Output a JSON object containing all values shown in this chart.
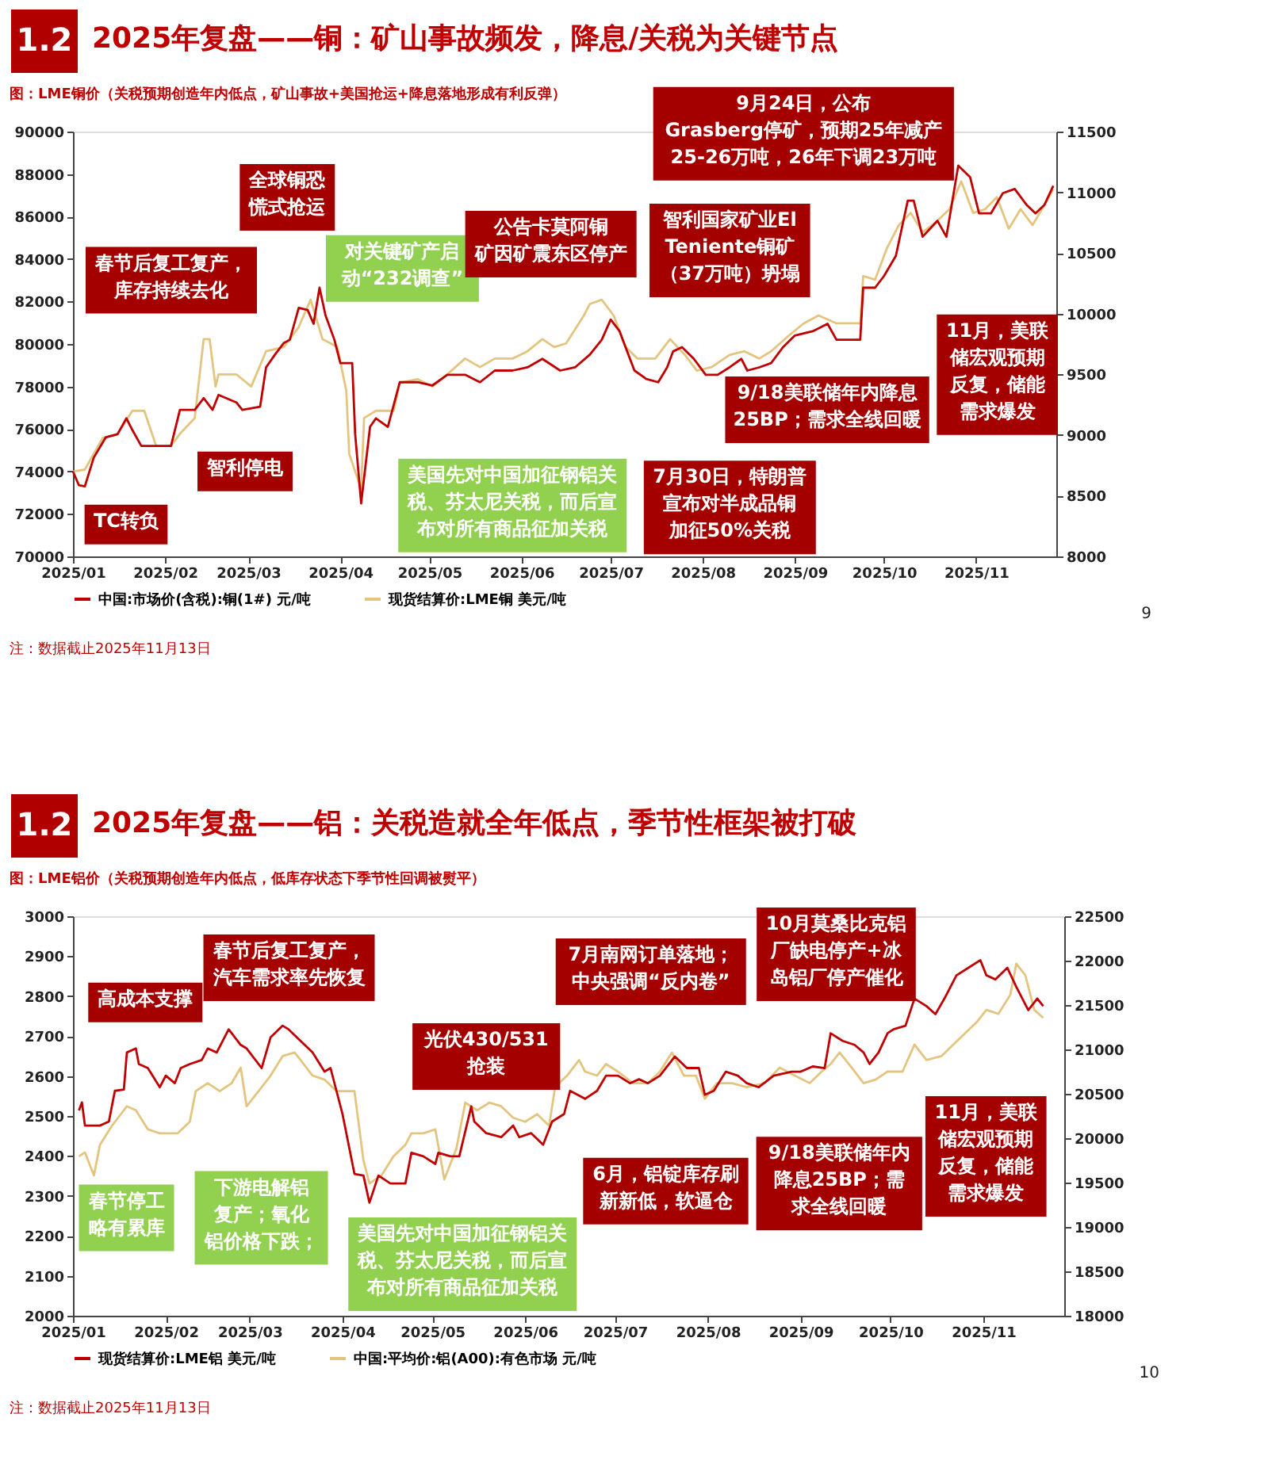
{
  "chart_data": [
    {
      "type": "line",
      "title": "2025年复盘——铜：矿山事故频发，降息/关税为关键节点",
      "subtitle": "图：LME铜价（关税预期创造年内低点，矿山事故+美国抢运+降息落地形成有利反弹）",
      "legend": "bottom",
      "xlim": [
        "2025-01-01",
        "2025-11-28"
      ],
      "xticks": [
        {
          "value": "2025-01-01",
          "label": "2025/01"
        },
        {
          "value": "2025-02-01",
          "label": "2025/02"
        },
        {
          "value": "2025-03-01",
          "label": "2025/03"
        },
        {
          "value": "2025-04-01",
          "label": "2025/04"
        },
        {
          "value": "2025-05-01",
          "label": "2025/05"
        },
        {
          "value": "2025-06-01",
          "label": "2025/06"
        },
        {
          "value": "2025-07-01",
          "label": "2025/07"
        },
        {
          "value": "2025-08-01",
          "label": "2025/08"
        },
        {
          "value": "2025-09-01",
          "label": "2025/09"
        },
        {
          "value": "2025-10-01",
          "label": "2025/10"
        },
        {
          "value": "2025-11-01",
          "label": "2025/11"
        }
      ],
      "ylim": [
        70000,
        90000
      ],
      "yticks": [
        70000,
        72000,
        74000,
        76000,
        78000,
        80000,
        82000,
        84000,
        86000,
        88000,
        90000
      ],
      "y2lim": [
        8000,
        11500
      ],
      "y2ticks": [
        8000,
        8500,
        9000,
        9500,
        10000,
        10500,
        11000,
        11500
      ],
      "series": [
        {
          "name": "中国:市场价(含税):铜(1#) 元/吨",
          "color": "#c00000",
          "x": [
            "2025-01-01",
            "2025-01-03",
            "2025-01-05",
            "2025-01-08",
            "2025-01-12",
            "2025-01-16",
            "2025-01-19",
            "2025-01-21",
            "2025-01-24",
            "2025-01-29",
            "2025-02-03",
            "2025-02-06",
            "2025-02-11",
            "2025-02-14",
            "2025-02-17",
            "2025-02-19",
            "2025-02-25",
            "2025-02-27",
            "2025-03-05",
            "2025-03-07",
            "2025-03-10",
            "2025-03-13",
            "2025-03-15",
            "2025-03-18",
            "2025-03-21",
            "2025-03-23",
            "2025-03-25",
            "2025-03-27",
            "2025-03-30",
            "2025-04-01",
            "2025-04-05",
            "2025-04-06",
            "2025-04-08",
            "2025-04-11",
            "2025-04-13",
            "2025-04-17",
            "2025-04-21",
            "2025-04-27",
            "2025-05-02",
            "2025-05-07",
            "2025-05-13",
            "2025-05-18",
            "2025-05-23",
            "2025-05-29",
            "2025-06-03",
            "2025-06-08",
            "2025-06-14",
            "2025-06-19",
            "2025-06-24",
            "2025-06-28",
            "2025-07-01",
            "2025-07-04",
            "2025-07-06",
            "2025-07-09",
            "2025-07-13",
            "2025-07-17",
            "2025-07-20",
            "2025-07-22",
            "2025-07-25",
            "2025-07-29",
            "2025-08-02",
            "2025-08-06",
            "2025-08-10",
            "2025-08-14",
            "2025-08-16",
            "2025-08-20",
            "2025-08-24",
            "2025-08-28",
            "2025-09-01",
            "2025-09-07",
            "2025-09-12",
            "2025-09-15",
            "2025-09-19",
            "2025-09-23",
            "2025-09-24",
            "2025-09-28",
            "2025-10-01",
            "2025-10-05",
            "2025-10-09",
            "2025-10-11",
            "2025-10-14",
            "2025-10-19",
            "2025-10-22",
            "2025-10-26",
            "2025-10-30",
            "2025-11-02",
            "2025-11-06",
            "2025-11-10",
            "2025-11-14",
            "2025-11-18",
            "2025-11-21",
            "2025-11-24",
            "2025-11-27"
          ],
          "values": [
            74000,
            73350,
            73300,
            74650,
            75600,
            75750,
            76500,
            75950,
            75200,
            75200,
            75200,
            76900,
            76900,
            77450,
            76900,
            77600,
            77250,
            76900,
            77050,
            78900,
            79500,
            80050,
            80200,
            81700,
            81600,
            80950,
            82650,
            81350,
            80200,
            79100,
            79100,
            75750,
            72500,
            76100,
            76500,
            76100,
            78200,
            78200,
            78050,
            78550,
            78550,
            78200,
            78750,
            78750,
            78900,
            79300,
            78750,
            78900,
            79500,
            80200,
            81150,
            80600,
            79850,
            78750,
            78350,
            78200,
            78900,
            79650,
            79850,
            79300,
            78550,
            78550,
            78900,
            79300,
            78750,
            78900,
            79100,
            79850,
            80400,
            80600,
            80950,
            80200,
            80200,
            80200,
            82650,
            82650,
            83200,
            84150,
            86750,
            86750,
            85050,
            85800,
            85050,
            88400,
            87850,
            86150,
            86150,
            87100,
            87300,
            86550,
            86150,
            86550,
            87450
          ]
        },
        {
          "name": "现货结算价:LME铜 美元/吨",
          "color": "#e3c57f",
          "axis": "y2",
          "x": [
            "2025-01-01",
            "2025-01-05",
            "2025-01-11",
            "2025-01-16",
            "2025-01-21",
            "2025-01-25",
            "2025-01-29",
            "2025-02-03",
            "2025-02-06",
            "2025-02-11",
            "2025-02-14",
            "2025-02-16",
            "2025-02-18",
            "2025-02-19",
            "2025-02-25",
            "2025-03-02",
            "2025-03-07",
            "2025-03-13",
            "2025-03-18",
            "2025-03-22",
            "2025-03-26",
            "2025-03-31",
            "2025-04-03",
            "2025-04-04",
            "2025-04-08",
            "2025-04-09",
            "2025-04-13",
            "2025-04-19",
            "2025-04-21",
            "2025-04-27",
            "2025-05-02",
            "2025-05-07",
            "2025-05-13",
            "2025-05-18",
            "2025-05-23",
            "2025-05-29",
            "2025-06-03",
            "2025-06-08",
            "2025-06-12",
            "2025-06-16",
            "2025-06-22",
            "2025-06-24",
            "2025-06-28",
            "2025-07-02",
            "2025-07-06",
            "2025-07-10",
            "2025-07-16",
            "2025-07-21",
            "2025-07-26",
            "2025-07-30",
            "2025-08-04",
            "2025-08-10",
            "2025-08-15",
            "2025-08-20",
            "2025-08-24",
            "2025-08-30",
            "2025-09-04",
            "2025-09-09",
            "2025-09-15",
            "2025-09-20",
            "2025-09-23",
            "2025-09-24",
            "2025-09-28",
            "2025-10-02",
            "2025-10-06",
            "2025-10-10",
            "2025-10-14",
            "2025-10-19",
            "2025-10-23",
            "2025-10-27",
            "2025-10-31",
            "2025-11-04",
            "2025-11-08",
            "2025-11-12",
            "2025-11-16",
            "2025-11-20",
            "2025-11-24",
            "2025-11-27"
          ],
          "values": [
            8700,
            8715,
            8975,
            9010,
            9200,
            9200,
            8910,
            8910,
            9010,
            9140,
            9790,
            9790,
            9400,
            9500,
            9500,
            9400,
            9690,
            9725,
            9890,
            10115,
            9790,
            9725,
            9365,
            8845,
            8555,
            9140,
            9200,
            9200,
            9430,
            9460,
            9400,
            9500,
            9630,
            9560,
            9630,
            9630,
            9690,
            9790,
            9725,
            9755,
            9985,
            10080,
            10115,
            9985,
            9725,
            9630,
            9630,
            9790,
            9660,
            9530,
            9560,
            9660,
            9690,
            9630,
            9690,
            9820,
            9920,
            9985,
            9920,
            9920,
            9920,
            10310,
            10280,
            10540,
            10730,
            10830,
            10670,
            10765,
            10860,
            11090,
            10830,
            10860,
            10960,
            10700,
            10860,
            10730,
            10895,
            11025
          ]
        }
      ],
      "annotations": [
        "1.2",
        "9",
        "注：数据截止2025年11月13日",
        "春节后复工复产，库存持续去化",
        "全球铜恐慌式抢运",
        "TC转负",
        "智利停电",
        "对关键矿产启动“232调查”",
        "公告卡莫阿铜矿因矿震东区停产",
        "9月24日，公布Grasberg停矿，预期25年减产25-26万吨，26年下调23万吨",
        "智利国家矿业El Teniente铜矿（37万吨）坍塌",
        "9/18美联储年内降息25BP；需求全线回暖",
        "7月30日，特朗普宣布对半成品铜加征50%关税",
        "美国先对中国加征钢铝关税、芬太尼关税，而后宣布对所有商品征加关税",
        "11月，美联储宏观预期反复，储能需求爆发"
      ]
    },
    {
      "type": "line",
      "title": "2025年复盘——铝：关税造就全年低点，季节性框架被打破",
      "subtitle": "图：LME铝价（关税预期创造年内低点，低库存状态下季节性回调被熨平）",
      "legend": "bottom",
      "xlim": [
        "2025-01-01",
        "2025-11-28"
      ],
      "xticks": [
        {
          "value": "2025-01-01",
          "label": "2025/01"
        },
        {
          "value": "2025-02-01",
          "label": "2025/02"
        },
        {
          "value": "2025-03-01",
          "label": "2025/03"
        },
        {
          "value": "2025-04-01",
          "label": "2025/04"
        },
        {
          "value": "2025-05-01",
          "label": "2025/05"
        },
        {
          "value": "2025-06-01",
          "label": "2025/06"
        },
        {
          "value": "2025-07-01",
          "label": "2025/07"
        },
        {
          "value": "2025-08-01",
          "label": "2025/08"
        },
        {
          "value": "2025-09-01",
          "label": "2025/09"
        },
        {
          "value": "2025-10-01",
          "label": "2025/10"
        },
        {
          "value": "2025-11-01",
          "label": "2025/11"
        }
      ],
      "ylim": [
        2000,
        3000
      ],
      "yticks": [
        2000,
        2100,
        2200,
        2300,
        2400,
        2500,
        2600,
        2700,
        2800,
        2900,
        3000
      ],
      "y2lim": [
        18000,
        22500
      ],
      "y2ticks": [
        18000,
        18500,
        19000,
        19500,
        20000,
        20500,
        21000,
        21500,
        22000,
        22500
      ],
      "series": [
        {
          "name": "现货结算价:LME铝 美元/吨",
          "color": "#c00000",
          "x": [
            "2025-01-03",
            "2025-01-04",
            "2025-01-05",
            "2025-01-10",
            "2025-01-13",
            "2025-01-15",
            "2025-01-18",
            "2025-01-19",
            "2025-01-22",
            "2025-01-23",
            "2025-01-26",
            "2025-01-30",
            "2025-02-01",
            "2025-02-04",
            "2025-02-06",
            "2025-02-09",
            "2025-02-13",
            "2025-02-15",
            "2025-02-18",
            "2025-02-22",
            "2025-02-26",
            "2025-02-28",
            "2025-03-05",
            "2025-03-08",
            "2025-03-12",
            "2025-03-14",
            "2025-03-18",
            "2025-03-22",
            "2025-03-26",
            "2025-03-28",
            "2025-04-01",
            "2025-04-05",
            "2025-04-08",
            "2025-04-10",
            "2025-04-13",
            "2025-04-17",
            "2025-04-22",
            "2025-04-24",
            "2025-04-28",
            "2025-05-02",
            "2025-05-03",
            "2025-05-07",
            "2025-05-10",
            "2025-05-14",
            "2025-05-15",
            "2025-05-19",
            "2025-05-24",
            "2025-05-28",
            "2025-05-30",
            "2025-06-03",
            "2025-06-07",
            "2025-06-10",
            "2025-06-14",
            "2025-06-16",
            "2025-06-21",
            "2025-06-25",
            "2025-06-28",
            "2025-07-02",
            "2025-07-06",
            "2025-07-09",
            "2025-07-12",
            "2025-07-16",
            "2025-07-21",
            "2025-07-25",
            "2025-07-29",
            "2025-07-31",
            "2025-08-03",
            "2025-08-07",
            "2025-08-11",
            "2025-08-14",
            "2025-08-18",
            "2025-08-23",
            "2025-08-29",
            "2025-09-01",
            "2025-09-05",
            "2025-09-09",
            "2025-09-11",
            "2025-09-15",
            "2025-09-19",
            "2025-09-22",
            "2025-09-24",
            "2025-09-27",
            "2025-09-30",
            "2025-10-02",
            "2025-10-06",
            "2025-10-09",
            "2025-10-13",
            "2025-10-16",
            "2025-10-19",
            "2025-10-23",
            "2025-10-27",
            "2025-10-31",
            "2025-11-02",
            "2025-11-05",
            "2025-11-09",
            "2025-11-12",
            "2025-11-16",
            "2025-11-19",
            "2025-11-21"
          ],
          "values": [
            2514,
            2534,
            2476,
            2476,
            2486,
            2563,
            2566,
            2659,
            2669,
            2630,
            2620,
            2572,
            2601,
            2582,
            2620,
            2630,
            2640,
            2669,
            2659,
            2717,
            2678,
            2669,
            2620,
            2697,
            2726,
            2717,
            2688,
            2659,
            2611,
            2620,
            2505,
            2355,
            2351,
            2283,
            2351,
            2331,
            2331,
            2408,
            2399,
            2380,
            2408,
            2399,
            2399,
            2524,
            2486,
            2457,
            2447,
            2476,
            2447,
            2457,
            2428,
            2486,
            2505,
            2563,
            2543,
            2563,
            2601,
            2601,
            2582,
            2592,
            2582,
            2601,
            2649,
            2620,
            2620,
            2553,
            2563,
            2611,
            2601,
            2582,
            2572,
            2601,
            2611,
            2611,
            2624,
            2620,
            2707,
            2688,
            2678,
            2659,
            2630,
            2659,
            2707,
            2717,
            2726,
            2794,
            2775,
            2755,
            2794,
            2852,
            2871,
            2890,
            2852,
            2842,
            2871,
            2823,
            2765,
            2794,
            2775
          ]
        },
        {
          "name": "中国:平均价:铝(A00):有色市场 元/吨",
          "color": "#e3c57f",
          "axis": "y2",
          "x": [
            "2025-01-03",
            "2025-01-05",
            "2025-01-08",
            "2025-01-10",
            "2025-01-14",
            "2025-01-17",
            "2025-01-19",
            "2025-01-22",
            "2025-01-26",
            "2025-01-30",
            "2025-02-05",
            "2025-02-09",
            "2025-02-11",
            "2025-02-15",
            "2025-02-19",
            "2025-02-23",
            "2025-02-26",
            "2025-02-28",
            "2025-03-04",
            "2025-03-08",
            "2025-03-12",
            "2025-03-16",
            "2025-03-18",
            "2025-03-22",
            "2025-03-26",
            "2025-03-30",
            "2025-04-05",
            "2025-04-08",
            "2025-04-10",
            "2025-04-14",
            "2025-04-18",
            "2025-04-22",
            "2025-04-24",
            "2025-04-28",
            "2025-05-02",
            "2025-05-05",
            "2025-05-09",
            "2025-05-12",
            "2025-05-16",
            "2025-05-20",
            "2025-05-24",
            "2025-05-28",
            "2025-06-01",
            "2025-06-05",
            "2025-06-09",
            "2025-06-11",
            "2025-06-15",
            "2025-06-19",
            "2025-06-21",
            "2025-06-25",
            "2025-06-28",
            "2025-07-02",
            "2025-07-07",
            "2025-07-12",
            "2025-07-16",
            "2025-07-20",
            "2025-07-24",
            "2025-07-28",
            "2025-07-31",
            "2025-08-04",
            "2025-08-09",
            "2025-08-14",
            "2025-08-20",
            "2025-08-25",
            "2025-08-30",
            "2025-09-04",
            "2025-09-08",
            "2025-09-11",
            "2025-09-14",
            "2025-09-18",
            "2025-09-22",
            "2025-09-26",
            "2025-09-30",
            "2025-10-05",
            "2025-10-09",
            "2025-10-13",
            "2025-10-18",
            "2025-10-22",
            "2025-10-26",
            "2025-10-30",
            "2025-11-02",
            "2025-11-06",
            "2025-11-10",
            "2025-11-12",
            "2025-11-15",
            "2025-11-18",
            "2025-11-21"
          ],
          "values": [
            19795,
            19840,
            19580,
            19925,
            20140,
            20270,
            20360,
            20315,
            20100,
            20055,
            20055,
            20185,
            20530,
            20620,
            20530,
            20620,
            20795,
            20360,
            20530,
            20705,
            20925,
            20965,
            20880,
            20705,
            20660,
            20530,
            20530,
            19750,
            19490,
            19580,
            19795,
            19925,
            20055,
            20055,
            20100,
            19535,
            19880,
            20400,
            20315,
            20400,
            20360,
            20230,
            20185,
            20270,
            20140,
            20575,
            20705,
            20880,
            20750,
            20705,
            20835,
            20750,
            20620,
            20620,
            20750,
            20965,
            20705,
            20705,
            20445,
            20620,
            20620,
            20575,
            20620,
            20795,
            20705,
            20620,
            20750,
            20835,
            20965,
            20795,
            20620,
            20660,
            20750,
            20750,
            21055,
            20880,
            20925,
            21055,
            21185,
            21315,
            21445,
            21400,
            21615,
            21965,
            21835,
            21445,
            21355
          ]
        }
      ],
      "annotations": [
        "1.2",
        "10",
        "注：数据截止2025年11月13日",
        "高成本支撑",
        "春节后复工复产，汽车需求率先恢复",
        "光伏430/531抢装",
        "7月南网订单落地；中央强调“反内卷”",
        "10月莫桑比克铝厂缺电停产+冰岛铝厂停产催化",
        "春节停工略有累库",
        "下游电解铝复产；氧化铝价格下跌；",
        "美国先对中国加征钢铝关税、芬太尼关税，而后宣布对所有商品征加关税",
        "6月，铝锭库存刷新新低，软逼仓",
        "9/18美联储年内降息25BP；需求全线回暖",
        "11月，美联储宏观预期反复，储能需求爆发"
      ]
    }
  ]
}
